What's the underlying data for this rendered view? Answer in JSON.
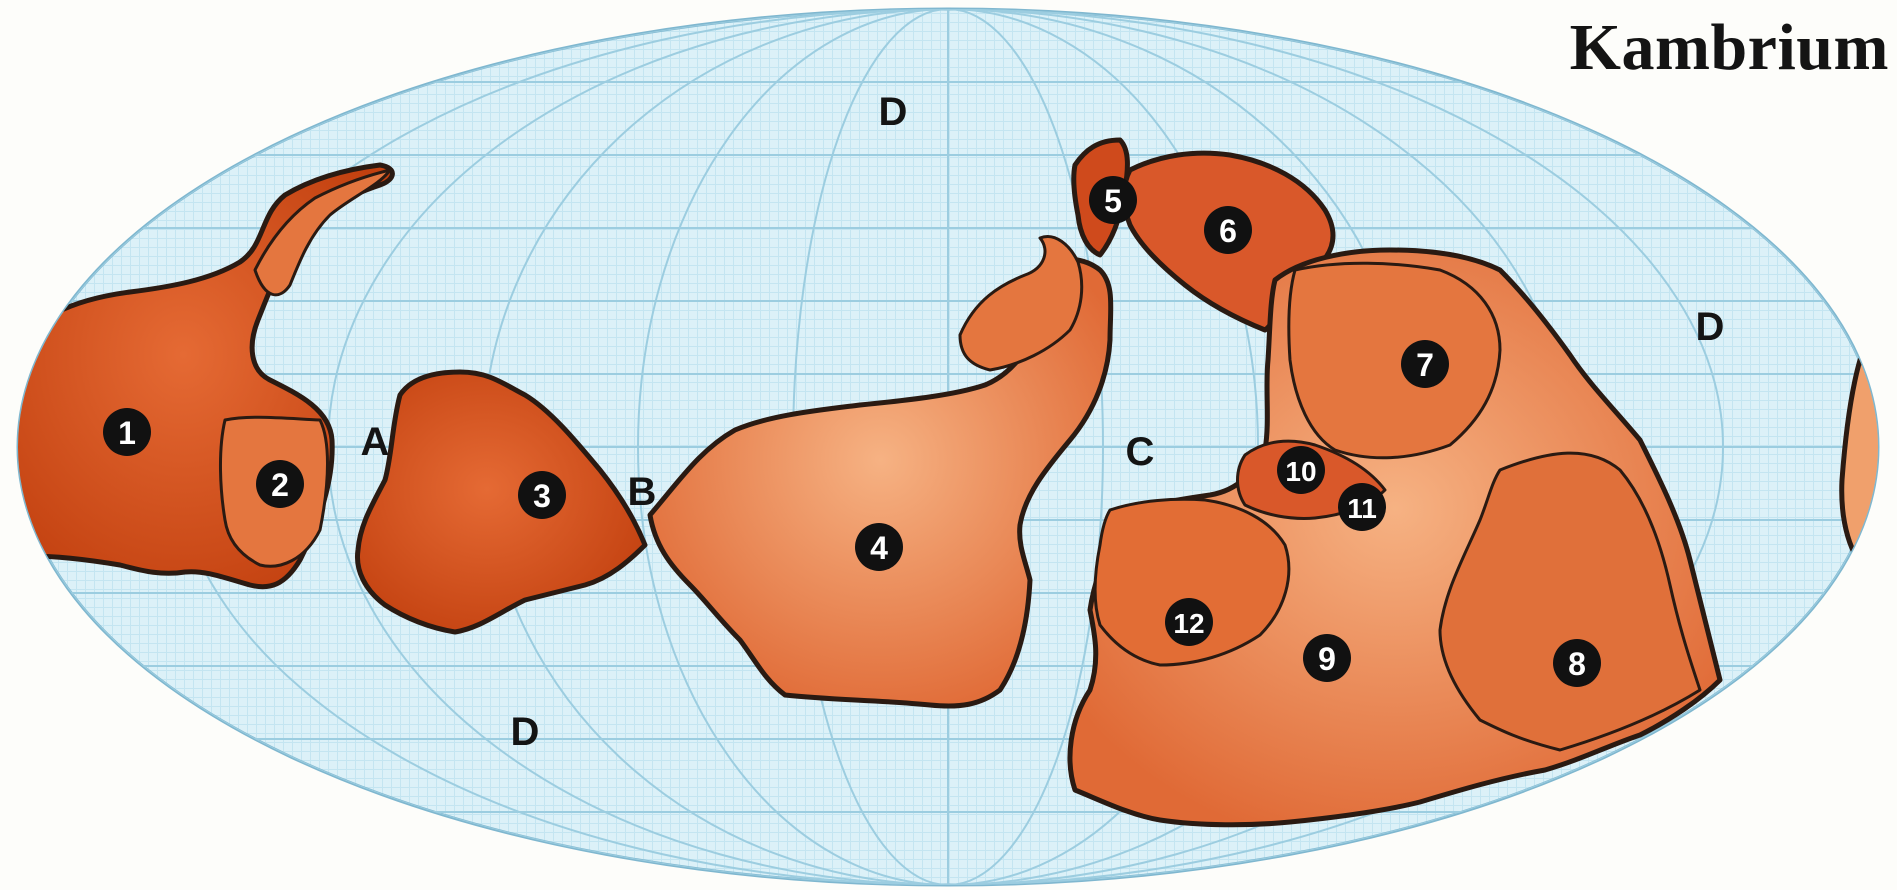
{
  "title": "Kambrium",
  "colors": {
    "ocean": "#dcf1f8",
    "grid": "#a8d3e4",
    "land_dark": "#cf4a1c",
    "land_mid": "#e06a36",
    "land_light": "#f0a06c",
    "coast": "#2a1a12",
    "badge": "#111111"
  },
  "ocean_labels": [
    "D",
    "D",
    "D",
    "A",
    "B",
    "C"
  ],
  "continent_markers": [
    "1",
    "2",
    "3",
    "4",
    "5",
    "6",
    "7",
    "8",
    "9",
    "10",
    "11",
    "12"
  ]
}
